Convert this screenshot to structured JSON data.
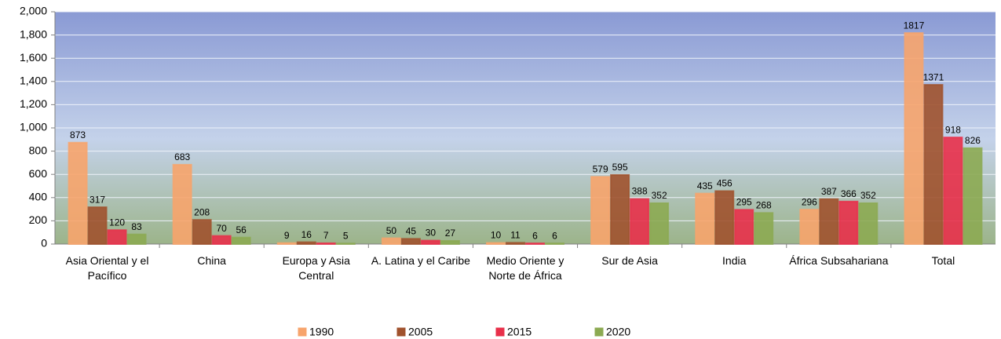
{
  "chart_data": {
    "type": "bar",
    "categories": [
      "Asia Oriental y el Pacífico",
      "China",
      "Europa y Asia Central",
      "A. Latina y el Caribe",
      "Medio Oriente y Norte de África",
      "Sur de Asia",
      "India",
      "África Subsahariana",
      "Total"
    ],
    "series": [
      {
        "name": "1990",
        "color": "#f7a46c",
        "values": [
          873,
          683,
          9,
          50,
          10,
          579,
          435,
          296,
          1817
        ]
      },
      {
        "name": "2005",
        "color": "#a0522d",
        "values": [
          317,
          208,
          16,
          45,
          11,
          595,
          456,
          387,
          1371
        ]
      },
      {
        "name": "2015",
        "color": "#e8304a",
        "values": [
          120,
          70,
          7,
          30,
          6,
          388,
          295,
          366,
          918
        ]
      },
      {
        "name": "2020",
        "color": "#8caa52",
        "values": [
          83,
          56,
          5,
          27,
          6,
          352,
          268,
          352,
          826
        ]
      }
    ],
    "ylim": [
      0,
      2000
    ],
    "yticks": [
      0,
      200,
      400,
      600,
      800,
      {
        "value": 1000,
        "label": "1,000"
      },
      {
        "value": 1200,
        "label": "1,200"
      },
      {
        "value": 1400,
        "label": "1,400"
      },
      {
        "value": 1600,
        "label": "1,600"
      },
      {
        "value": 1800,
        "label": "1,800"
      },
      {
        "value": 2000,
        "label": "2,000"
      }
    ],
    "grid": true,
    "legend": "bottom"
  }
}
